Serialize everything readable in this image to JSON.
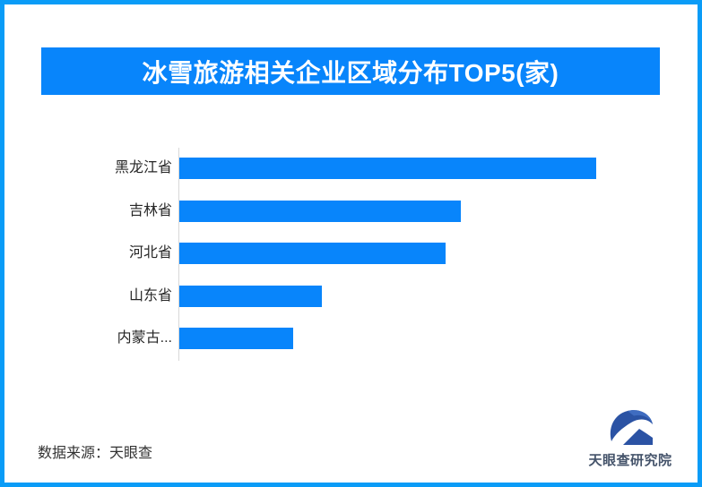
{
  "page": {
    "border_color": "#0a9cf7",
    "background_color": "#ffffff"
  },
  "header": {
    "title": "冰雪旅游相关企业区域分布TOP5(家)",
    "banner_color": "#0885fb",
    "title_color": "#ffffff"
  },
  "chart_data": {
    "type": "bar",
    "orientation": "horizontal",
    "title": "冰雪旅游相关企业区域分布TOP5(家)",
    "categories": [
      "黑龙江省",
      "吉林省",
      "河北省",
      "山东省",
      "内蒙古..."
    ],
    "values": [
      465,
      314,
      297,
      159,
      127
    ],
    "value_scale": "relative-bar-length-px",
    "axis_value_labels_visible": false,
    "grid": false,
    "legend": false,
    "bar_color": "#0885fb",
    "axis_line_color": "#d8d8d8",
    "label_color": "#262626"
  },
  "footer": {
    "source": "数据来源：天眼查",
    "logo_text": "天眼查研究院",
    "logo_color": "#2b53a4"
  }
}
